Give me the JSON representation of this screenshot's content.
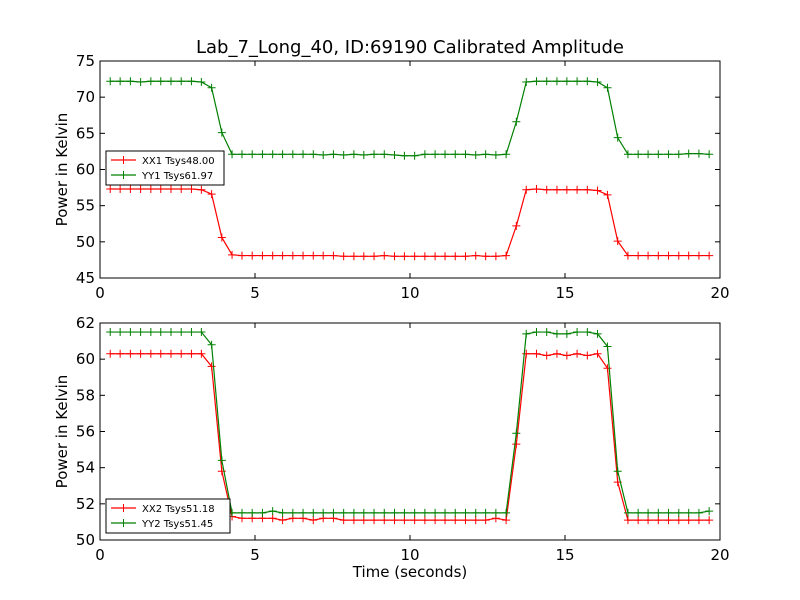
{
  "figure": {
    "title": "Lab_7_Long_40, ID:69190 Calibrated Amplitude"
  },
  "chart_data": [
    {
      "type": "line",
      "ylabel": "Power in Kelvin",
      "xlabel": "",
      "xlim": [
        0,
        20
      ],
      "ylim": [
        45,
        75
      ],
      "xticks": [
        "0",
        "5",
        "10",
        "15",
        "20"
      ],
      "yticks": [
        "45",
        "50",
        "55",
        "60",
        "65",
        "70",
        "75"
      ],
      "legend": "left",
      "x": [
        0.33,
        0.65,
        0.98,
        1.31,
        1.64,
        1.96,
        2.29,
        2.62,
        2.95,
        3.27,
        3.6,
        3.93,
        4.26,
        4.58,
        4.91,
        5.24,
        5.57,
        5.89,
        6.22,
        6.55,
        6.88,
        7.2,
        7.53,
        7.86,
        8.19,
        8.51,
        8.84,
        9.17,
        9.5,
        9.82,
        10.15,
        10.48,
        10.81,
        11.13,
        11.46,
        11.79,
        12.12,
        12.44,
        12.77,
        13.1,
        13.43,
        13.75,
        14.08,
        14.41,
        14.74,
        15.06,
        15.39,
        15.72,
        16.05,
        16.37,
        16.7,
        17.03,
        17.36,
        17.68,
        18.01,
        18.34,
        18.67,
        18.99,
        19.32,
        19.65
      ],
      "series": [
        {
          "name": "XX1 Tsys48.00",
          "color": "#ff0000",
          "values": [
            57.3,
            57.3,
            57.3,
            57.3,
            57.3,
            57.3,
            57.3,
            57.3,
            57.3,
            57.2,
            56.6,
            50.6,
            48.2,
            48.1,
            48.1,
            48.1,
            48.1,
            48.1,
            48.1,
            48.1,
            48.1,
            48.1,
            48.1,
            48.0,
            48.0,
            48.0,
            48.0,
            48.1,
            48.0,
            48.0,
            48.0,
            48.0,
            48.0,
            48.0,
            48.0,
            48.0,
            48.1,
            48.0,
            48.0,
            48.1,
            52.2,
            57.2,
            57.3,
            57.2,
            57.2,
            57.2,
            57.2,
            57.2,
            57.1,
            56.5,
            50.1,
            48.1,
            48.1,
            48.1,
            48.1,
            48.1,
            48.1,
            48.1,
            48.1,
            48.1
          ]
        },
        {
          "name": "YY1 Tsys61.97",
          "color": "#008000",
          "values": [
            72.2,
            72.2,
            72.2,
            72.1,
            72.2,
            72.2,
            72.2,
            72.2,
            72.2,
            72.1,
            71.3,
            65.1,
            62.1,
            62.1,
            62.1,
            62.1,
            62.1,
            62.1,
            62.1,
            62.1,
            62.1,
            62.0,
            62.1,
            62.0,
            62.1,
            62.0,
            62.1,
            62.1,
            62.0,
            61.9,
            61.9,
            62.1,
            62.1,
            62.1,
            62.1,
            62.1,
            62.0,
            62.1,
            62.0,
            62.1,
            66.6,
            72.1,
            72.2,
            72.2,
            72.2,
            72.2,
            72.2,
            72.2,
            72.1,
            71.3,
            64.4,
            62.1,
            62.1,
            62.1,
            62.1,
            62.1,
            62.1,
            62.2,
            62.2,
            62.1
          ]
        }
      ]
    },
    {
      "type": "line",
      "ylabel": "Power in Kelvin",
      "xlabel": "Time (seconds)",
      "xlim": [
        0,
        20
      ],
      "ylim": [
        50,
        62
      ],
      "xticks": [
        "0",
        "5",
        "10",
        "15",
        "20"
      ],
      "yticks": [
        "50",
        "52",
        "54",
        "56",
        "58",
        "60",
        "62"
      ],
      "legend": "lower left",
      "x": [
        0.33,
        0.65,
        0.98,
        1.31,
        1.64,
        1.96,
        2.29,
        2.62,
        2.95,
        3.27,
        3.6,
        3.93,
        4.26,
        4.58,
        4.91,
        5.24,
        5.57,
        5.89,
        6.22,
        6.55,
        6.88,
        7.2,
        7.53,
        7.86,
        8.19,
        8.51,
        8.84,
        9.17,
        9.5,
        9.82,
        10.15,
        10.48,
        10.81,
        11.13,
        11.46,
        11.79,
        12.12,
        12.44,
        12.77,
        13.1,
        13.43,
        13.75,
        14.08,
        14.41,
        14.74,
        15.06,
        15.39,
        15.72,
        16.05,
        16.37,
        16.7,
        17.03,
        17.36,
        17.68,
        18.01,
        18.34,
        18.67,
        18.99,
        19.32,
        19.65
      ],
      "series": [
        {
          "name": "XX2 Tsys51.18",
          "color": "#ff0000",
          "values": [
            60.3,
            60.3,
            60.3,
            60.3,
            60.3,
            60.3,
            60.3,
            60.3,
            60.3,
            60.3,
            59.6,
            53.8,
            51.3,
            51.2,
            51.2,
            51.2,
            51.2,
            51.1,
            51.2,
            51.2,
            51.1,
            51.2,
            51.2,
            51.1,
            51.1,
            51.1,
            51.1,
            51.1,
            51.1,
            51.1,
            51.1,
            51.1,
            51.1,
            51.1,
            51.1,
            51.1,
            51.1,
            51.1,
            51.2,
            51.1,
            55.3,
            60.3,
            60.3,
            60.2,
            60.3,
            60.2,
            60.3,
            60.2,
            60.3,
            59.5,
            53.2,
            51.1,
            51.1,
            51.1,
            51.1,
            51.1,
            51.1,
            51.1,
            51.1,
            51.1
          ]
        },
        {
          "name": "YY2 Tsys51.45",
          "color": "#008000",
          "values": [
            61.5,
            61.5,
            61.5,
            61.5,
            61.5,
            61.5,
            61.5,
            61.5,
            61.5,
            61.5,
            60.8,
            54.4,
            51.5,
            51.5,
            51.5,
            51.5,
            51.6,
            51.5,
            51.5,
            51.5,
            51.5,
            51.5,
            51.5,
            51.5,
            51.5,
            51.5,
            51.5,
            51.5,
            51.5,
            51.5,
            51.5,
            51.5,
            51.5,
            51.5,
            51.5,
            51.5,
            51.5,
            51.5,
            51.5,
            51.5,
            55.9,
            61.4,
            61.5,
            61.5,
            61.4,
            61.4,
            61.5,
            61.5,
            61.4,
            60.7,
            53.8,
            51.5,
            51.5,
            51.5,
            51.5,
            51.5,
            51.5,
            51.5,
            51.5,
            51.6
          ]
        }
      ]
    }
  ]
}
